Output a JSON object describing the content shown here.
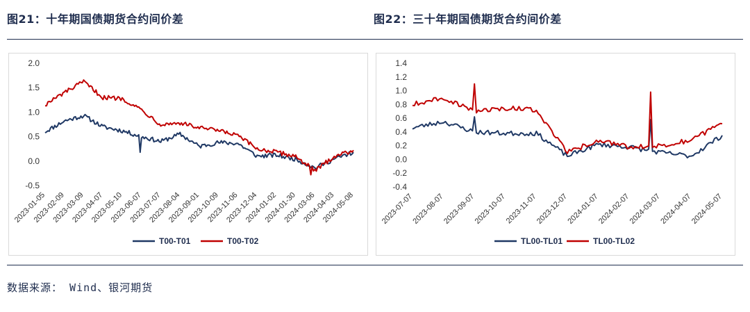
{
  "figures": [
    {
      "title": "图21：十年期国债期货合约间价差"
    },
    {
      "title": "图22：三十年期国债期货合约间价差"
    }
  ],
  "source": {
    "label": "数据来源：",
    "value": " Wind、银河期货"
  },
  "chart_data": [
    {
      "type": "line",
      "title": "",
      "xlabel": "",
      "ylabel": "",
      "ylim": [
        -0.5,
        2.0
      ],
      "yticks": [
        "2.0",
        "1.5",
        "1.0",
        "0.5",
        "0.0",
        "-0.5"
      ],
      "ytick_values": [
        2.0,
        1.5,
        1.0,
        0.5,
        0.0,
        -0.5
      ],
      "x": [
        "2023-01-05",
        "2023-02-09",
        "2023-03-09",
        "2023-04-07",
        "2023-05-10",
        "2023-06-07",
        "2023-07-07",
        "2023-08-04",
        "2023-09-01",
        "2023-10-09",
        "2023-11-06",
        "2023-12-04",
        "2024-01-02",
        "2024-01-30",
        "2024-03-06",
        "2024-04-03",
        "2024-05-08"
      ],
      "legend_position": "bottom",
      "series": [
        {
          "name": "T00-T01",
          "color": "#1f3864",
          "values": [
            0.6,
            0.82,
            0.93,
            0.7,
            0.62,
            0.5,
            0.4,
            0.55,
            0.3,
            0.38,
            0.36,
            0.1,
            0.12,
            0.04,
            -0.14,
            0.04,
            0.18
          ]
        },
        {
          "name": "T00-T02",
          "color": "#c00000",
          "values": [
            1.15,
            1.4,
            1.62,
            1.3,
            1.28,
            1.05,
            0.75,
            0.78,
            0.68,
            0.62,
            0.52,
            0.25,
            0.18,
            0.1,
            -0.2,
            0.1,
            0.22
          ]
        }
      ]
    },
    {
      "type": "line",
      "title": "",
      "xlabel": "",
      "ylabel": "",
      "ylim": [
        -0.4,
        1.4
      ],
      "yticks": [
        "1.4",
        "1.2",
        "1.0",
        "0.8",
        "0.6",
        "0.4",
        "0.2",
        "0.0",
        "-0.2",
        "-0.4"
      ],
      "ytick_values": [
        1.4,
        1.2,
        1.0,
        0.8,
        0.6,
        0.4,
        0.2,
        0.0,
        -0.2,
        -0.4
      ],
      "x": [
        "2023-07-07",
        "2023-08-07",
        "2023-09-07",
        "2023-10-07",
        "2023-11-07",
        "2023-12-07",
        "2024-01-07",
        "2024-02-07",
        "2024-03-07",
        "2024-04-07",
        "2024-05-07"
      ],
      "legend_position": "bottom",
      "series": [
        {
          "name": "TL00-TL01",
          "color": "#1f3864",
          "values": [
            0.46,
            0.55,
            0.4,
            0.38,
            0.38,
            0.05,
            0.22,
            0.18,
            0.1,
            0.05,
            0.35
          ]
        },
        {
          "name": "TL00-TL02",
          "color": "#c00000",
          "values": [
            0.8,
            0.9,
            0.7,
            0.75,
            0.72,
            0.1,
            0.28,
            0.18,
            0.2,
            0.28,
            0.52
          ]
        }
      ]
    }
  ]
}
